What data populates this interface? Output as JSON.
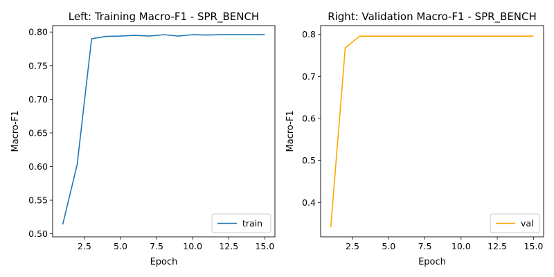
{
  "chart_data": [
    {
      "type": "line",
      "title": "Left: Training Macro-F1 - SPR_BENCH",
      "xlabel": "Epoch",
      "ylabel": "Macro-F1",
      "xlim": [
        0.3,
        15.7
      ],
      "ylim": [
        0.4955,
        0.8095
      ],
      "xticks": [
        2.5,
        5.0,
        7.5,
        10.0,
        12.5,
        15.0
      ],
      "xtick_labels": [
        "2.5",
        "5.0",
        "7.5",
        "10.0",
        "12.5",
        "15.0"
      ],
      "yticks": [
        0.5,
        0.55,
        0.6,
        0.65,
        0.7,
        0.75,
        0.8
      ],
      "ytick_labels": [
        "0.50",
        "0.55",
        "0.60",
        "0.65",
        "0.70",
        "0.75",
        "0.80"
      ],
      "grid": false,
      "legend_position": "lower-right",
      "series": [
        {
          "name": "train",
          "color": "#1f77b4",
          "x": [
            1,
            2,
            3,
            4,
            5,
            6,
            7,
            8,
            9,
            10,
            11,
            12,
            13,
            14,
            15
          ],
          "values": [
            0.514,
            0.603,
            0.79,
            0.7935,
            0.794,
            0.795,
            0.794,
            0.796,
            0.794,
            0.796,
            0.7955,
            0.796,
            0.796,
            0.796,
            0.796
          ]
        }
      ]
    },
    {
      "type": "line",
      "title": "Right: Validation Macro-F1 - SPR_BENCH",
      "xlabel": "Epoch",
      "ylabel": "Macro-F1",
      "xlim": [
        0.3,
        15.7
      ],
      "ylim": [
        0.318,
        0.821
      ],
      "xticks": [
        2.5,
        5.0,
        7.5,
        10.0,
        12.5,
        15.0
      ],
      "xtick_labels": [
        "2.5",
        "5.0",
        "7.5",
        "10.0",
        "12.5",
        "15.0"
      ],
      "yticks": [
        0.4,
        0.5,
        0.6,
        0.7,
        0.8
      ],
      "ytick_labels": [
        "0.4",
        "0.5",
        "0.6",
        "0.7",
        "0.8"
      ],
      "grid": false,
      "legend_position": "lower-right",
      "series": [
        {
          "name": "val",
          "color": "#ffa500",
          "x": [
            1,
            2,
            3,
            4,
            5,
            6,
            7,
            8,
            9,
            10,
            11,
            12,
            13,
            14,
            15
          ],
          "values": [
            0.341,
            0.768,
            0.796,
            0.796,
            0.796,
            0.796,
            0.796,
            0.796,
            0.796,
            0.796,
            0.796,
            0.796,
            0.796,
            0.796,
            0.796
          ]
        }
      ]
    }
  ]
}
